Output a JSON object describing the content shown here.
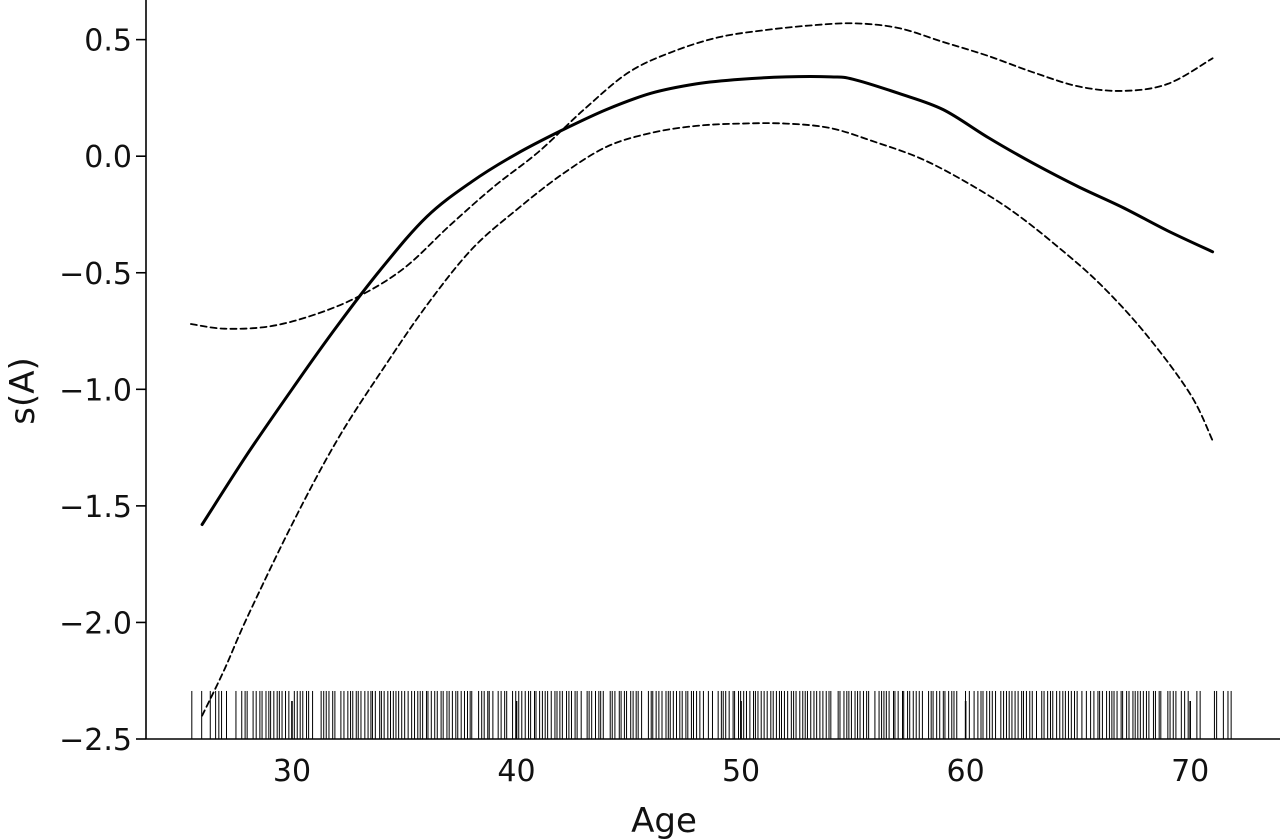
{
  "chart_data": {
    "type": "line",
    "title": "",
    "xlabel": "Age",
    "ylabel": "s(A)",
    "xlim": [
      23.5,
      74.0
    ],
    "ylim": [
      -2.5,
      0.67
    ],
    "x_ticks": [
      {
        "value": 30,
        "label": "30"
      },
      {
        "value": 40,
        "label": "40"
      },
      {
        "value": 50,
        "label": "50"
      },
      {
        "value": 60,
        "label": "60"
      },
      {
        "value": 70,
        "label": "70"
      }
    ],
    "y_ticks": [
      {
        "value": 0.5,
        "label": "0.5"
      },
      {
        "value": 0.0,
        "label": "0.0"
      },
      {
        "value": -0.5,
        "label": "−0.5"
      },
      {
        "value": -1.0,
        "label": "−1.0"
      },
      {
        "value": -1.5,
        "label": "−1.5"
      },
      {
        "value": -2.0,
        "label": "−2.0"
      },
      {
        "value": -2.5,
        "label": "−2.5"
      }
    ],
    "grid": false,
    "series": [
      {
        "style": "solid",
        "x": [
          26,
          28,
          30,
          32,
          34,
          36,
          38,
          40,
          42,
          44,
          46,
          48,
          50,
          52,
          54,
          55,
          57,
          59,
          61,
          63,
          65,
          67,
          69,
          71
        ],
        "y": [
          -1.58,
          -1.28,
          -1.0,
          -0.73,
          -0.48,
          -0.26,
          -0.11,
          0.01,
          0.11,
          0.2,
          0.27,
          0.31,
          0.33,
          0.34,
          0.34,
          0.33,
          0.27,
          0.2,
          0.08,
          -0.03,
          -0.13,
          -0.22,
          -0.32,
          -0.41
        ]
      },
      {
        "style": "dashed",
        "x": [
          25.5,
          27,
          29,
          31,
          33,
          35,
          37,
          39,
          41,
          43,
          45,
          47,
          49,
          51,
          53,
          55,
          57,
          59,
          61,
          63,
          65,
          67,
          69,
          71
        ],
        "y": [
          -0.72,
          -0.74,
          -0.73,
          -0.68,
          -0.6,
          -0.48,
          -0.3,
          -0.13,
          0.02,
          0.2,
          0.36,
          0.45,
          0.51,
          0.54,
          0.56,
          0.57,
          0.55,
          0.49,
          0.43,
          0.36,
          0.3,
          0.28,
          0.31,
          0.42
        ]
      },
      {
        "style": "dashed",
        "x": [
          26,
          27,
          28,
          30,
          32,
          34,
          36,
          38,
          40,
          42,
          44,
          46,
          48,
          50,
          52,
          54,
          56,
          58,
          60,
          62,
          64,
          66,
          68,
          70,
          71
        ],
        "y": [
          -2.4,
          -2.2,
          -1.98,
          -1.58,
          -1.22,
          -0.92,
          -0.64,
          -0.4,
          -0.23,
          -0.08,
          0.04,
          0.1,
          0.13,
          0.14,
          0.14,
          0.12,
          0.06,
          -0.01,
          -0.11,
          -0.23,
          -0.38,
          -0.55,
          -0.76,
          -1.02,
          -1.22
        ]
      }
    ],
    "rug": {
      "min": 25.3,
      "max": 72.1,
      "step": 0.13,
      "length": 0.065
    }
  }
}
